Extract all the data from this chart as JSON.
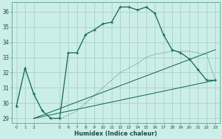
{
  "xlabel": "Humidex (Indice chaleur)",
  "bg_color": "#cceee8",
  "grid_color": "#aad4cc",
  "line_color": "#1a6b5a",
  "xlim": [
    -0.5,
    23.5
  ],
  "ylim": [
    28.7,
    36.6
  ],
  "xticks": [
    0,
    1,
    2,
    5,
    6,
    7,
    8,
    9,
    10,
    11,
    12,
    13,
    14,
    15,
    16,
    17,
    18,
    19,
    20,
    21,
    22,
    23
  ],
  "yticks": [
    29,
    30,
    31,
    32,
    33,
    34,
    35,
    36
  ],
  "main_line_x": [
    0,
    1,
    2,
    3,
    4,
    5,
    6,
    7,
    8,
    9,
    10,
    11,
    12,
    13,
    14,
    15,
    16,
    17,
    18,
    19,
    20,
    21,
    22,
    23
  ],
  "main_line_y": [
    29.8,
    32.3,
    30.6,
    29.5,
    29.0,
    29.0,
    33.3,
    33.3,
    34.5,
    34.8,
    35.2,
    35.3,
    36.3,
    36.3,
    36.1,
    36.3,
    35.9,
    34.5,
    33.5,
    33.3,
    32.9,
    32.2,
    31.5,
    31.5
  ],
  "dotted_line_x": [
    0,
    1,
    2,
    3,
    4,
    5,
    6,
    7,
    8,
    9,
    10,
    11,
    12,
    13,
    14,
    15,
    16,
    17,
    18,
    19,
    20,
    21,
    22,
    23
  ],
  "dotted_line_y": [
    29.8,
    32.3,
    30.6,
    29.5,
    29.0,
    29.0,
    29.2,
    29.5,
    30.0,
    30.5,
    31.0,
    31.5,
    32.0,
    32.3,
    32.6,
    33.0,
    33.2,
    33.3,
    33.4,
    33.4,
    33.4,
    33.3,
    33.2,
    31.5
  ],
  "ref_line1_x": [
    2,
    23
  ],
  "ref_line1_y": [
    29.0,
    33.5
  ],
  "ref_line2_x": [
    2,
    23
  ],
  "ref_line2_y": [
    29.0,
    31.5
  ]
}
